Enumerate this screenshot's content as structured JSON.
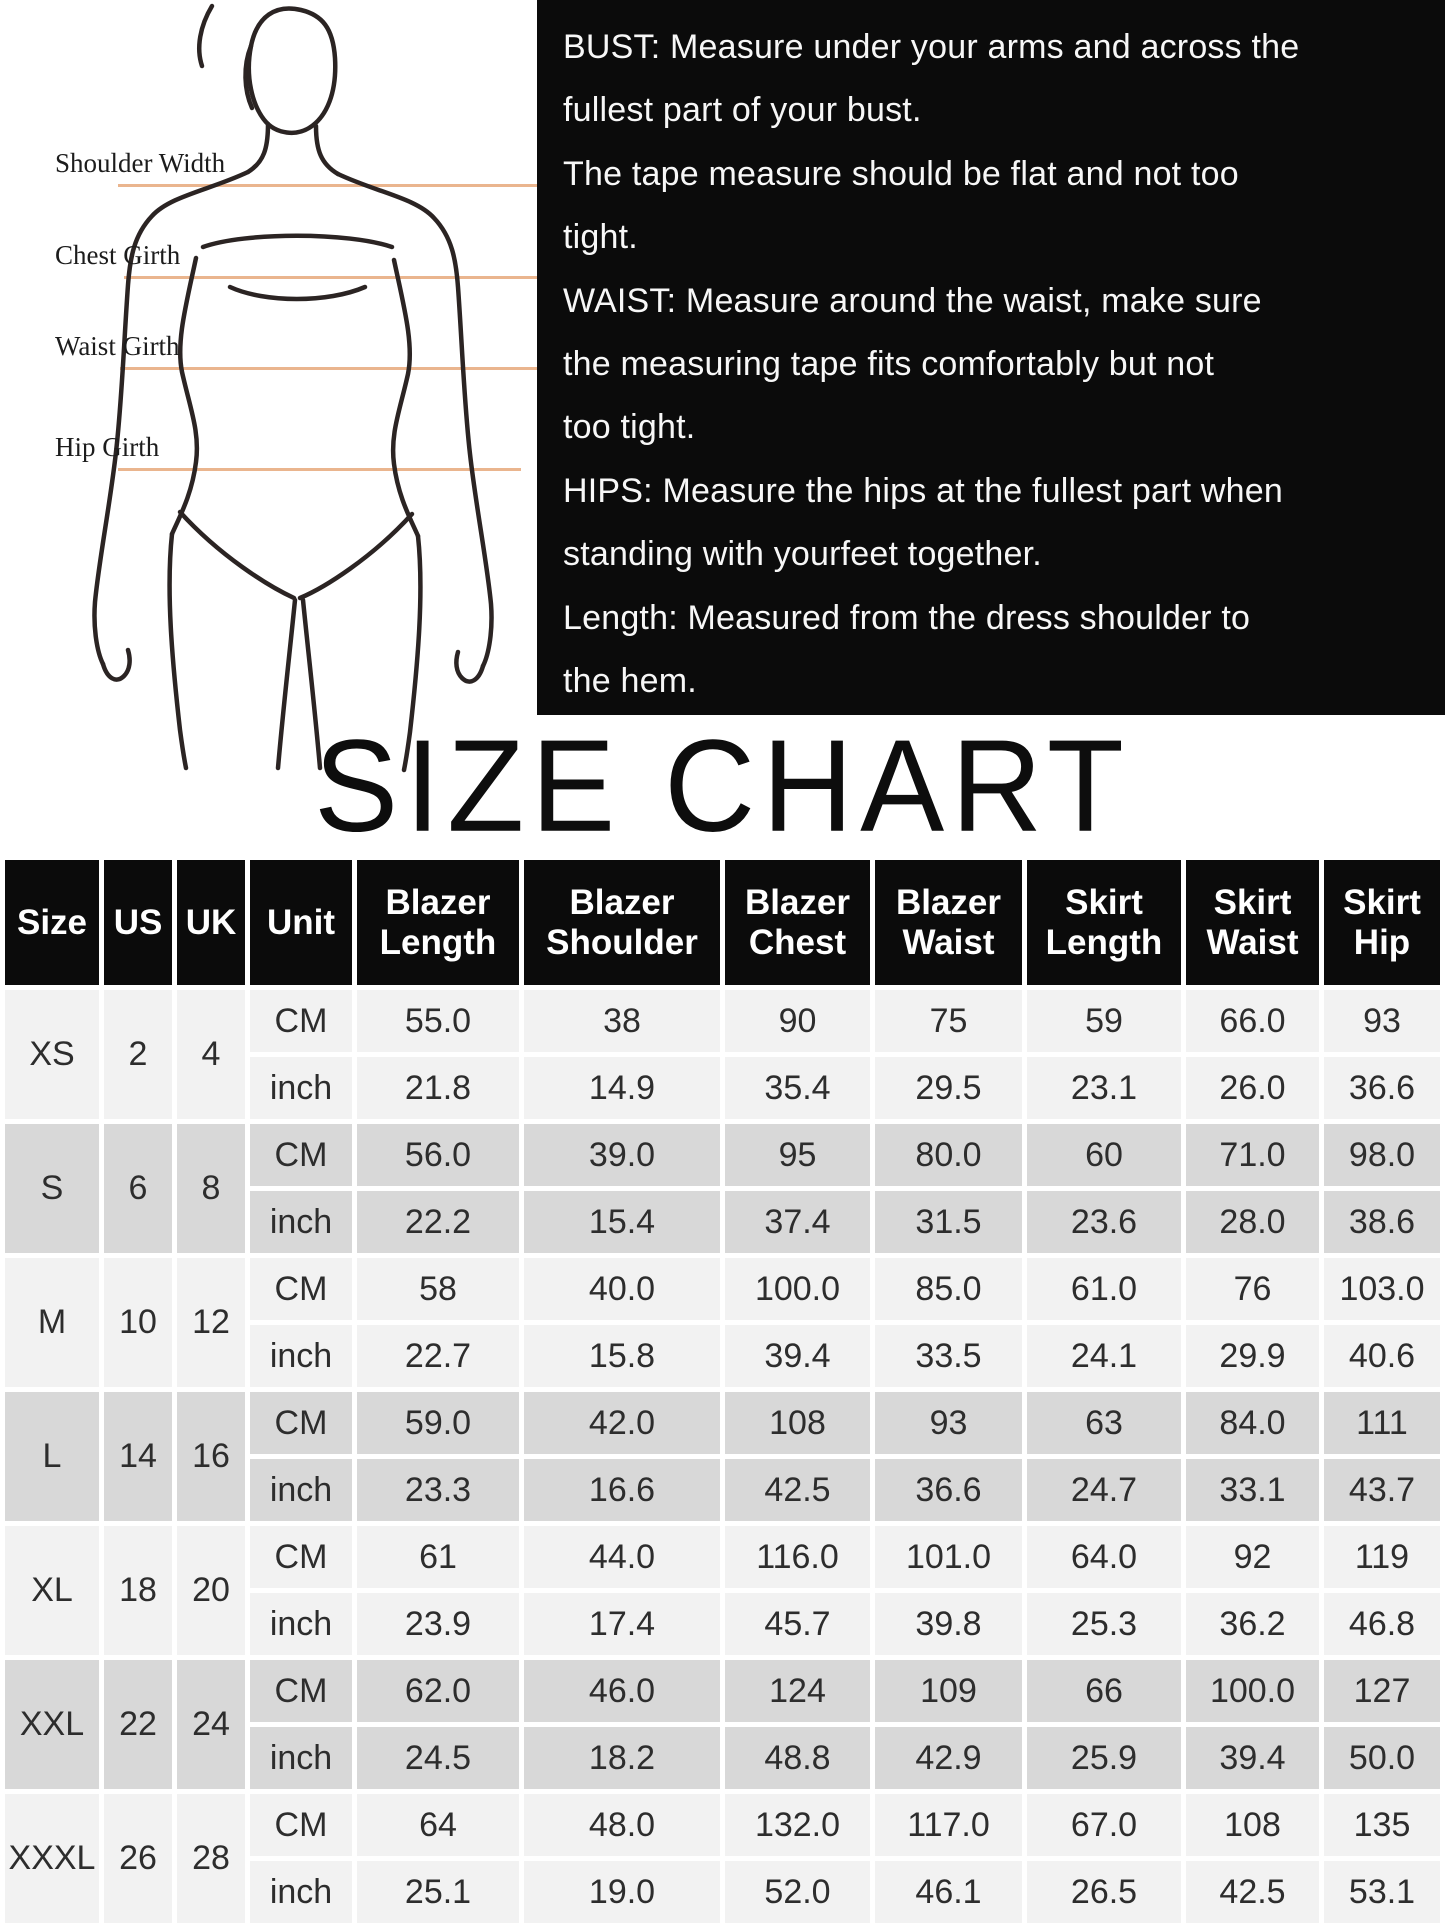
{
  "title": "SIZE CHART",
  "figure": {
    "labels": [
      {
        "text": "Shoulder Width"
      },
      {
        "text": "Chest Girth"
      },
      {
        "text": "Waist Girth"
      },
      {
        "text": "Hip Girth"
      }
    ]
  },
  "instructions": {
    "lines": [
      "BUST: Measure under your arms and across the",
      "fullest part of your bust.",
      "The tape measure should be flat and not too",
      "tight.",
      "WAIST: Measure around the waist, make sure",
      "the measuring tape fits comfortably but not",
      "too tight.",
      "HIPS: Measure the hips at the fullest part when",
      "standing with yourfeet together.",
      "Length: Measured from the dress shoulder to",
      "the hem."
    ]
  },
  "table": {
    "headers": [
      "Size",
      "US",
      "UK",
      "Unit",
      "Blazer Length",
      "Blazer Shoulder",
      "Blazer Chest",
      "Blazer Waist",
      "Skirt Length",
      "Skirt Waist",
      "Skirt Hip"
    ],
    "unit_labels": [
      "CM",
      "inch"
    ],
    "rows": [
      {
        "size": "XS",
        "us": "2",
        "uk": "4",
        "shade": "light",
        "cm": [
          "55.0",
          "38",
          "90",
          "75",
          "59",
          "66.0",
          "93"
        ],
        "inch": [
          "21.8",
          "14.9",
          "35.4",
          "29.5",
          "23.1",
          "26.0",
          "36.6"
        ]
      },
      {
        "size": "S",
        "us": "6",
        "uk": "8",
        "shade": "dark",
        "cm": [
          "56.0",
          "39.0",
          "95",
          "80.0",
          "60",
          "71.0",
          "98.0"
        ],
        "inch": [
          "22.2",
          "15.4",
          "37.4",
          "31.5",
          "23.6",
          "28.0",
          "38.6"
        ]
      },
      {
        "size": "M",
        "us": "10",
        "uk": "12",
        "shade": "light",
        "cm": [
          "58",
          "40.0",
          "100.0",
          "85.0",
          "61.0",
          "76",
          "103.0"
        ],
        "inch": [
          "22.7",
          "15.8",
          "39.4",
          "33.5",
          "24.1",
          "29.9",
          "40.6"
        ]
      },
      {
        "size": "L",
        "us": "14",
        "uk": "16",
        "shade": "dark",
        "cm": [
          "59.0",
          "42.0",
          "108",
          "93",
          "63",
          "84.0",
          "111"
        ],
        "inch": [
          "23.3",
          "16.6",
          "42.5",
          "36.6",
          "24.7",
          "33.1",
          "43.7"
        ]
      },
      {
        "size": "XL",
        "us": "18",
        "uk": "20",
        "shade": "light",
        "cm": [
          "61",
          "44.0",
          "116.0",
          "101.0",
          "64.0",
          "92",
          "119"
        ],
        "inch": [
          "23.9",
          "17.4",
          "45.7",
          "39.8",
          "25.3",
          "36.2",
          "46.8"
        ]
      },
      {
        "size": "XXL",
        "us": "22",
        "uk": "24",
        "shade": "dark",
        "cm": [
          "62.0",
          "46.0",
          "124",
          "109",
          "66",
          "100.0",
          "127"
        ],
        "inch": [
          "24.5",
          "18.2",
          "48.8",
          "42.9",
          "25.9",
          "39.4",
          "50.0"
        ]
      },
      {
        "size": "XXXL",
        "us": "26",
        "uk": "28",
        "shade": "light",
        "cm": [
          "64",
          "48.0",
          "132.0",
          "117.0",
          "67.0",
          "108",
          "135"
        ],
        "inch": [
          "25.1",
          "19.0",
          "52.0",
          "46.1",
          "26.5",
          "42.5",
          "53.1"
        ]
      }
    ]
  },
  "colors": {
    "panel_bg": "#0b0b0b",
    "accent_line": "#eab58e",
    "header_bg": "#0b0b0b",
    "row_light": "#f2f2f2",
    "row_dark": "#d8d8d8",
    "figure_stroke": "#2b2423"
  }
}
